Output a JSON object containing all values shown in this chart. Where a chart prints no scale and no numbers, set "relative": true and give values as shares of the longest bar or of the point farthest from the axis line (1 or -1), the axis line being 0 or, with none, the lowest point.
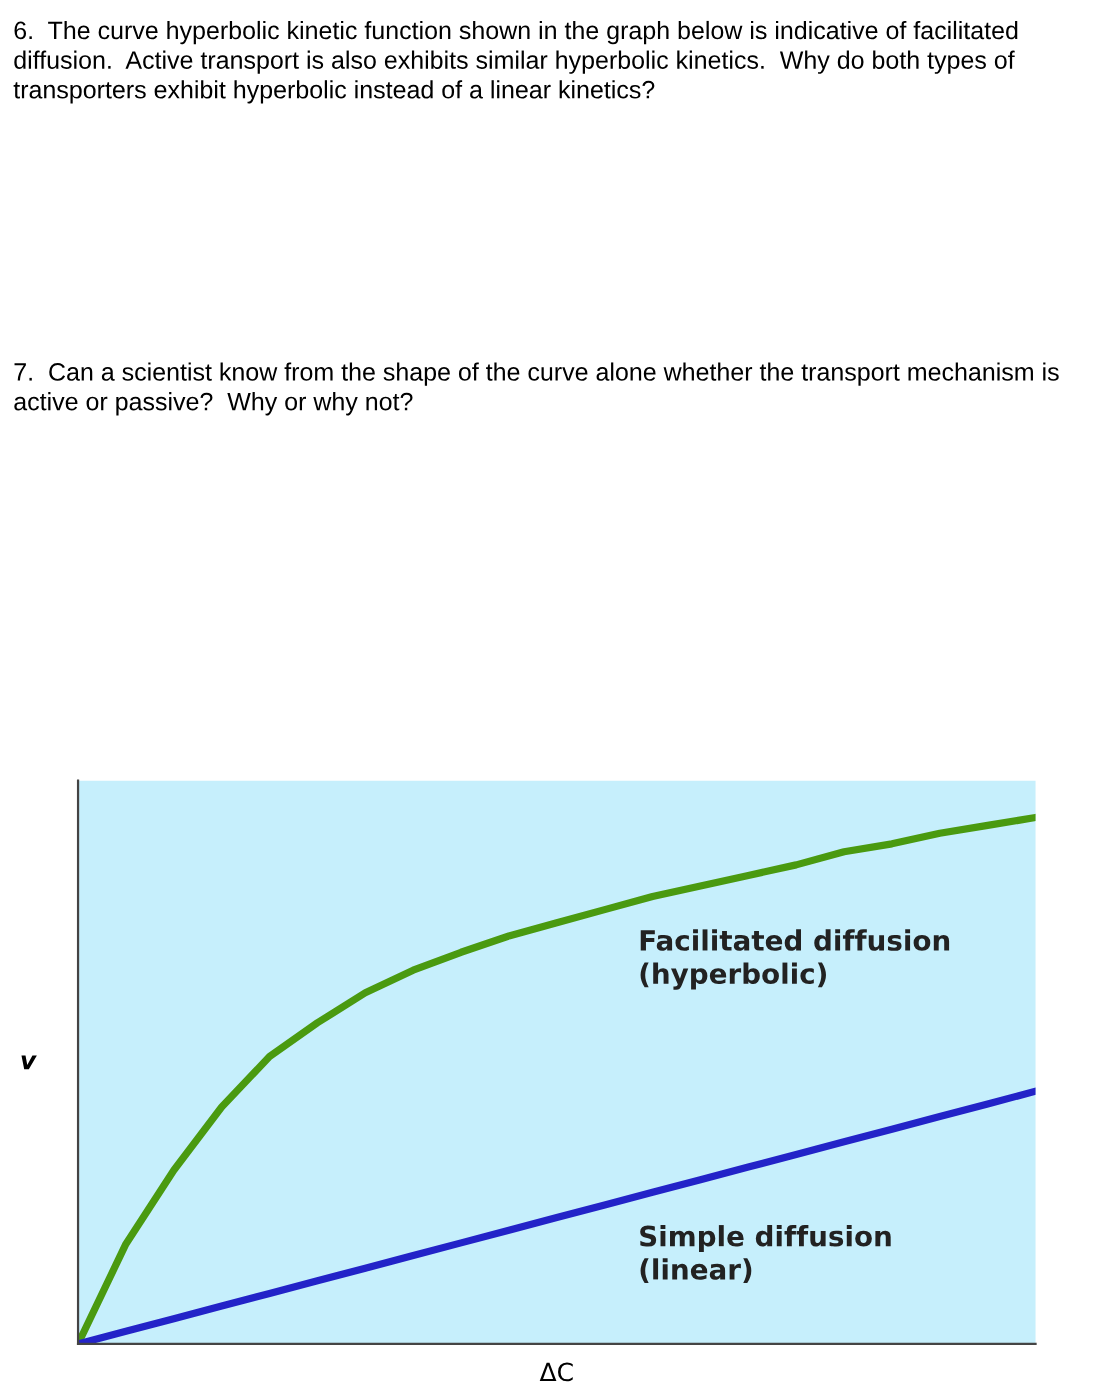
{
  "chart_data": {
    "type": "line",
    "relative": true,
    "xlabel": "ΔC",
    "ylabel": "v",
    "line_style": "solid",
    "annotations": [
      "6.  The curve hyperbolic kinetic function shown in the graph below is indicative of facilitated diffusion.  Active transport is also exhibits similar hyperbolic kinetics.  Why do both types of transporters exhibit hyperbolic instead of a linear kinetics?",
      "7.  Can a scientist know from the shape of the curve alone whether the transport mechanism is active or passive?  Why or why not?"
    ],
    "categories": [
      null,
      null,
      null,
      null,
      null,
      null,
      null,
      null,
      null,
      null,
      null,
      null,
      null,
      null,
      null,
      null,
      null,
      null,
      null,
      null,
      null
    ],
    "series": [
      {
        "name": "Facilitated diffusion\n(hyperbolic)",
        "color": "#4a9a10",
        "values": [
          0,
          0.19,
          0.33,
          0.45,
          0.546,
          0.61,
          0.667,
          0.71,
          0.744,
          0.775,
          0.8,
          0.825,
          0.85,
          0.87,
          0.89,
          0.91,
          0.935,
          0.95,
          0.97,
          0.985,
          1.0
        ]
      },
      {
        "name": "Simple diffusion\n(linear)",
        "color": "#2323c8",
        "values": [
          0,
          0.024,
          0.048,
          0.072,
          0.096,
          0.12,
          0.144,
          0.168,
          0.192,
          0.216,
          0.24,
          0.264,
          0.288,
          0.312,
          0.336,
          0.36,
          0.384,
          0.408,
          0.432,
          0.456,
          0.48
        ]
      }
    ]
  }
}
